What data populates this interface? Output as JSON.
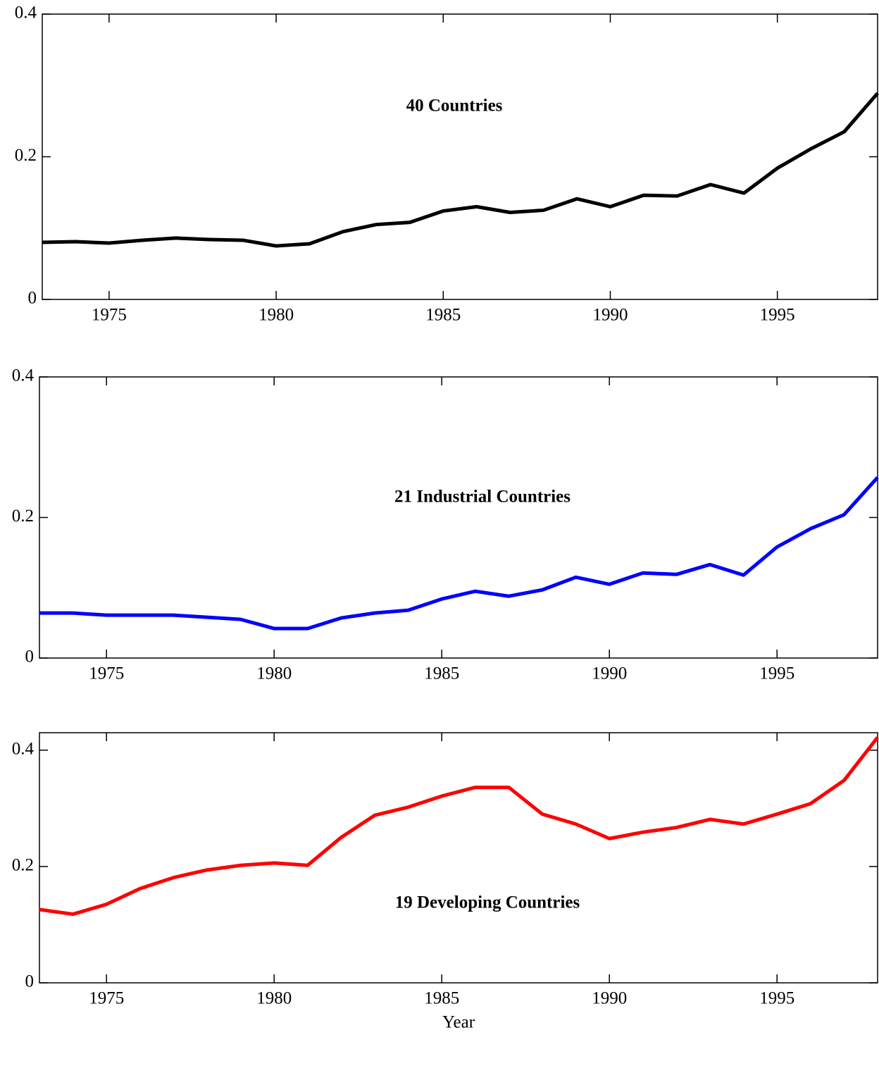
{
  "chart_data": [
    {
      "type": "line",
      "annotation": "40 Countries",
      "x": [
        1973,
        1974,
        1975,
        1976,
        1977,
        1978,
        1979,
        1980,
        1981,
        1982,
        1983,
        1984,
        1985,
        1986,
        1987,
        1988,
        1989,
        1990,
        1991,
        1992,
        1993,
        1994,
        1995,
        1996,
        1997,
        1998
      ],
      "series": [
        {
          "color": "#000000",
          "values": [
            0.08,
            0.081,
            0.079,
            0.083,
            0.086,
            0.084,
            0.083,
            0.075,
            0.078,
            0.095,
            0.105,
            0.108,
            0.124,
            0.13,
            0.122,
            0.125,
            0.141,
            0.13,
            0.146,
            0.145,
            0.161,
            0.149,
            0.184,
            0.211,
            0.235,
            0.289
          ]
        }
      ],
      "xlim": [
        1973,
        1998
      ],
      "xticks": [
        1975,
        1980,
        1985,
        1990,
        1995
      ],
      "ylim": [
        0,
        0.4
      ],
      "yticks": [
        0,
        0.2,
        0.4
      ]
    },
    {
      "type": "line",
      "annotation": "21 Industrial Countries",
      "x": [
        1973,
        1974,
        1975,
        1976,
        1977,
        1978,
        1979,
        1980,
        1981,
        1982,
        1983,
        1984,
        1985,
        1986,
        1987,
        1988,
        1989,
        1990,
        1991,
        1992,
        1993,
        1994,
        1995,
        1996,
        1997,
        1998
      ],
      "series": [
        {
          "color": "#0000ff",
          "values": [
            0.064,
            0.064,
            0.061,
            0.061,
            0.061,
            0.058,
            0.055,
            0.042,
            0.042,
            0.057,
            0.064,
            0.068,
            0.084,
            0.095,
            0.088,
            0.097,
            0.115,
            0.105,
            0.121,
            0.119,
            0.133,
            0.118,
            0.158,
            0.184,
            0.204,
            0.257
          ]
        }
      ],
      "xlim": [
        1973,
        1998
      ],
      "xticks": [
        1975,
        1980,
        1985,
        1990,
        1995
      ],
      "ylim": [
        0,
        0.4
      ],
      "yticks": [
        0,
        0.2,
        0.4
      ]
    },
    {
      "type": "line",
      "annotation": "19 Developing Countries",
      "xlabel": "Year",
      "x": [
        1973,
        1974,
        1975,
        1976,
        1977,
        1978,
        1979,
        1980,
        1981,
        1982,
        1983,
        1984,
        1985,
        1986,
        1987,
        1988,
        1989,
        1990,
        1991,
        1992,
        1993,
        1994,
        1995,
        1996,
        1997,
        1998
      ],
      "series": [
        {
          "color": "#ff0000",
          "values": [
            0.126,
            0.118,
            0.135,
            0.162,
            0.181,
            0.194,
            0.202,
            0.206,
            0.202,
            0.25,
            0.288,
            0.302,
            0.321,
            0.336,
            0.336,
            0.29,
            0.273,
            0.248,
            0.259,
            0.267,
            0.281,
            0.273,
            0.29,
            0.308,
            0.348,
            0.422
          ]
        }
      ],
      "xlim": [
        1973,
        1998
      ],
      "xticks": [
        1975,
        1980,
        1985,
        1990,
        1995
      ],
      "ylim": [
        0,
        0.43
      ],
      "yticks": [
        0,
        0.2,
        0.4
      ]
    }
  ]
}
